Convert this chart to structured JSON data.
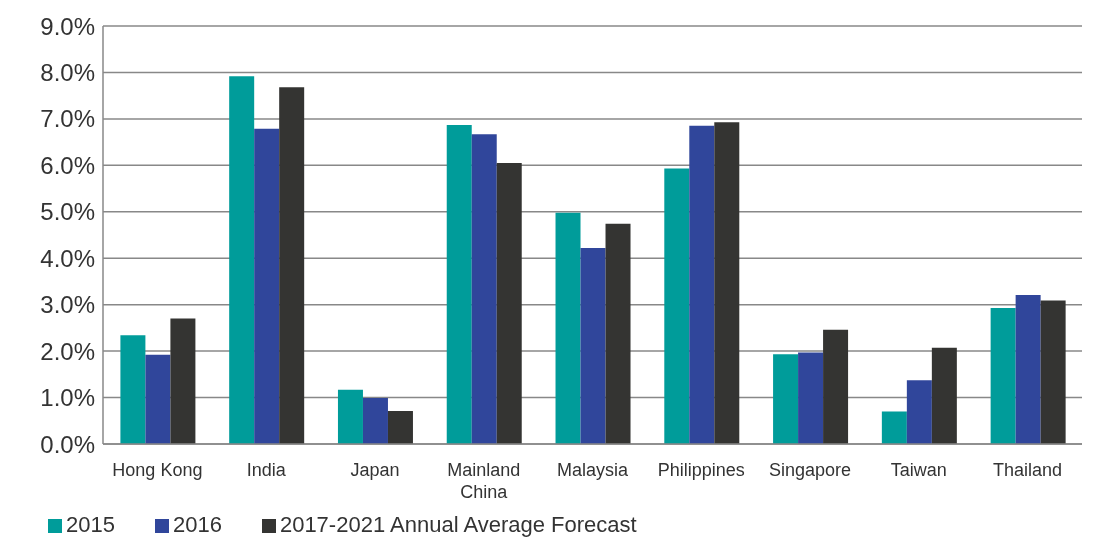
{
  "chart_data": {
    "type": "bar",
    "categories": [
      "Hong Kong",
      "India",
      "Japan",
      "Mainland China",
      "Malaysia",
      "Philippines",
      "Singapore",
      "Taiwan",
      "Thailand"
    ],
    "series": [
      {
        "name": "2015",
        "color": "#009c9a",
        "values": [
          2.34,
          7.92,
          1.17,
          6.87,
          4.98,
          5.93,
          1.93,
          0.7,
          2.93
        ]
      },
      {
        "name": "2016",
        "color": "#30469b",
        "values": [
          1.92,
          6.79,
          0.99,
          6.67,
          4.22,
          6.85,
          1.97,
          1.37,
          3.21
        ]
      },
      {
        "name": "2017-2021 Annual Average Forecast",
        "color": "#343432",
        "values": [
          2.7,
          7.68,
          0.71,
          6.05,
          4.74,
          6.93,
          2.46,
          2.07,
          3.09
        ]
      }
    ],
    "ylim": [
      0,
      9
    ],
    "yticks": [
      {
        "value": 0,
        "label": "0.0%"
      },
      {
        "value": 1,
        "label": "1.0%"
      },
      {
        "value": 2,
        "label": "2.0%"
      },
      {
        "value": 3,
        "label": "3.0%"
      },
      {
        "value": 4,
        "label": "4.0%"
      },
      {
        "value": 5,
        "label": "5.0%"
      },
      {
        "value": 6,
        "label": "6.0%"
      },
      {
        "value": 7,
        "label": "7.0%"
      },
      {
        "value": 8,
        "label": "8.0%"
      },
      {
        "value": 9,
        "label": "9.0%"
      }
    ],
    "grid": "y",
    "legend": "bottom left"
  }
}
